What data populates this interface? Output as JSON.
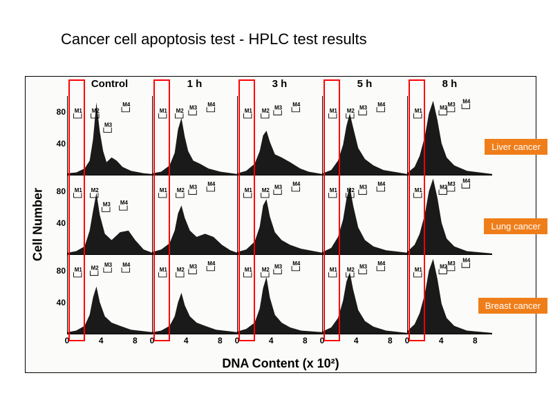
{
  "title": "Cancer cell apoptosis test - HPLC test results",
  "axes": {
    "y_label": "Cell Number",
    "x_label": "DNA Content (x 10²)",
    "y_ticks": [
      40,
      80
    ],
    "x_ticks": [
      0,
      4,
      8
    ],
    "x_domain": [
      0,
      10
    ],
    "y_domain": [
      0,
      100
    ]
  },
  "columns": [
    "Control",
    "1 h",
    "3 h",
    "5 h",
    "8 h"
  ],
  "rows": [
    {
      "label": "Liver cancer",
      "badge_bg": "#ef7e1a"
    },
    {
      "label": "Lung cancer",
      "badge_bg": "#ef7e1a"
    },
    {
      "label": "Breast cancer",
      "badge_bg": "#ef7e1a"
    }
  ],
  "colors": {
    "histogram_fill": "#1a1a1a",
    "grid_line": "#000000",
    "red_box": "#ff0000",
    "background": "#ffffff",
    "figure_bg": "#fbfbf9"
  },
  "gate_labels": [
    "M1",
    "M2",
    "M3",
    "M4"
  ],
  "red_box_x_range": [
    0.3,
    2.3
  ],
  "panels": [
    [
      {
        "profile": [
          [
            0,
            2
          ],
          [
            1,
            3
          ],
          [
            2,
            8
          ],
          [
            2.6,
            18
          ],
          [
            3.0,
            45
          ],
          [
            3.4,
            92
          ],
          [
            3.8,
            55
          ],
          [
            4.2,
            30
          ],
          [
            4.6,
            16
          ],
          [
            5.2,
            22
          ],
          [
            5.8,
            18
          ],
          [
            6.5,
            10
          ],
          [
            7.5,
            5
          ],
          [
            9,
            2
          ],
          [
            10,
            1
          ]
        ],
        "gates": [
          [
            0.4,
            78
          ],
          [
            2.6,
            78
          ],
          [
            4.2,
            60
          ],
          [
            6.5,
            86
          ]
        ]
      },
      {
        "profile": [
          [
            0,
            2
          ],
          [
            1,
            4
          ],
          [
            2,
            12
          ],
          [
            2.6,
            28
          ],
          [
            3.0,
            58
          ],
          [
            3.4,
            72
          ],
          [
            3.8,
            48
          ],
          [
            4.2,
            30
          ],
          [
            4.8,
            18
          ],
          [
            5.6,
            14
          ],
          [
            6.6,
            8
          ],
          [
            8,
            4
          ],
          [
            10,
            1
          ]
        ],
        "gates": [
          [
            0.4,
            78
          ],
          [
            2.5,
            78
          ],
          [
            4.2,
            82
          ],
          [
            6.5,
            86
          ]
        ]
      },
      {
        "profile": [
          [
            0,
            2
          ],
          [
            1,
            5
          ],
          [
            2,
            14
          ],
          [
            2.6,
            30
          ],
          [
            3.0,
            50
          ],
          [
            3.4,
            56
          ],
          [
            3.8,
            42
          ],
          [
            4.4,
            26
          ],
          [
            5.2,
            22
          ],
          [
            6.2,
            16
          ],
          [
            7.4,
            8
          ],
          [
            8.4,
            4
          ],
          [
            10,
            1
          ]
        ],
        "gates": [
          [
            0.4,
            78
          ],
          [
            2.6,
            78
          ],
          [
            4.2,
            82
          ],
          [
            6.5,
            86
          ]
        ]
      },
      {
        "profile": [
          [
            0,
            2
          ],
          [
            1,
            6
          ],
          [
            1.8,
            18
          ],
          [
            2.4,
            38
          ],
          [
            2.8,
            62
          ],
          [
            3.2,
            78
          ],
          [
            3.6,
            60
          ],
          [
            4.2,
            34
          ],
          [
            5.0,
            20
          ],
          [
            6.0,
            12
          ],
          [
            7.2,
            6
          ],
          [
            10,
            1
          ]
        ],
        "gates": [
          [
            0.4,
            78
          ],
          [
            2.6,
            78
          ],
          [
            4.2,
            82
          ],
          [
            6.5,
            86
          ]
        ]
      },
      {
        "profile": [
          [
            0,
            3
          ],
          [
            0.8,
            10
          ],
          [
            1.4,
            24
          ],
          [
            2.0,
            48
          ],
          [
            2.5,
            78
          ],
          [
            3.0,
            94
          ],
          [
            3.5,
            70
          ],
          [
            4.0,
            40
          ],
          [
            4.6,
            22
          ],
          [
            5.5,
            12
          ],
          [
            7,
            5
          ],
          [
            10,
            1
          ]
        ],
        "gates": [
          [
            0.4,
            78
          ],
          [
            3.6,
            82
          ],
          [
            4.6,
            86
          ],
          [
            6.5,
            90
          ]
        ]
      }
    ],
    [
      {
        "profile": [
          [
            0,
            2
          ],
          [
            1,
            4
          ],
          [
            2,
            10
          ],
          [
            2.6,
            30
          ],
          [
            3.0,
            55
          ],
          [
            3.4,
            78
          ],
          [
            3.8,
            50
          ],
          [
            4.4,
            26
          ],
          [
            5.2,
            18
          ],
          [
            6.2,
            28
          ],
          [
            7.2,
            30
          ],
          [
            8.0,
            18
          ],
          [
            9,
            6
          ],
          [
            10,
            2
          ]
        ],
        "gates": [
          [
            0.4,
            78
          ],
          [
            2.5,
            78
          ],
          [
            4.0,
            60
          ],
          [
            6.2,
            62
          ]
        ]
      },
      {
        "profile": [
          [
            0,
            3
          ],
          [
            1,
            6
          ],
          [
            2,
            14
          ],
          [
            2.6,
            30
          ],
          [
            3.0,
            52
          ],
          [
            3.4,
            62
          ],
          [
            3.8,
            46
          ],
          [
            4.4,
            30
          ],
          [
            5.2,
            22
          ],
          [
            6.2,
            26
          ],
          [
            7.2,
            22
          ],
          [
            8.2,
            12
          ],
          [
            9.2,
            5
          ],
          [
            10,
            2
          ]
        ],
        "gates": [
          [
            0.4,
            78
          ],
          [
            2.6,
            78
          ],
          [
            4.2,
            82
          ],
          [
            6.5,
            86
          ]
        ]
      },
      {
        "profile": [
          [
            0,
            3
          ],
          [
            1,
            6
          ],
          [
            2,
            16
          ],
          [
            2.6,
            35
          ],
          [
            3.0,
            62
          ],
          [
            3.4,
            70
          ],
          [
            3.8,
            48
          ],
          [
            4.4,
            28
          ],
          [
            5.2,
            18
          ],
          [
            6.2,
            12
          ],
          [
            7.5,
            7
          ],
          [
            10,
            2
          ]
        ],
        "gates": [
          [
            0.4,
            78
          ],
          [
            2.6,
            78
          ],
          [
            4.2,
            82
          ],
          [
            6.5,
            86
          ]
        ]
      },
      {
        "profile": [
          [
            0,
            3
          ],
          [
            1,
            8
          ],
          [
            1.8,
            22
          ],
          [
            2.4,
            44
          ],
          [
            2.8,
            70
          ],
          [
            3.2,
            86
          ],
          [
            3.6,
            62
          ],
          [
            4.2,
            34
          ],
          [
            5.0,
            18
          ],
          [
            6.0,
            10
          ],
          [
            7.5,
            5
          ],
          [
            10,
            2
          ]
        ],
        "gates": [
          [
            0.4,
            78
          ],
          [
            2.6,
            78
          ],
          [
            4.2,
            82
          ],
          [
            6.5,
            86
          ]
        ]
      },
      {
        "profile": [
          [
            0,
            4
          ],
          [
            0.8,
            12
          ],
          [
            1.4,
            26
          ],
          [
            2.0,
            50
          ],
          [
            2.5,
            80
          ],
          [
            3.0,
            96
          ],
          [
            3.5,
            72
          ],
          [
            4.0,
            40
          ],
          [
            4.6,
            20
          ],
          [
            5.5,
            10
          ],
          [
            7,
            4
          ],
          [
            10,
            1
          ]
        ],
        "gates": [
          [
            0.4,
            78
          ],
          [
            3.6,
            82
          ],
          [
            4.6,
            86
          ],
          [
            6.5,
            90
          ]
        ]
      }
    ],
    [
      {
        "profile": [
          [
            0,
            2
          ],
          [
            1,
            4
          ],
          [
            2,
            10
          ],
          [
            2.6,
            24
          ],
          [
            3.0,
            46
          ],
          [
            3.4,
            60
          ],
          [
            3.8,
            40
          ],
          [
            4.4,
            22
          ],
          [
            5.2,
            14
          ],
          [
            6.2,
            10
          ],
          [
            7.5,
            5
          ],
          [
            10,
            2
          ]
        ],
        "gates": [
          [
            0.4,
            78
          ],
          [
            2.5,
            80
          ],
          [
            4.2,
            84
          ],
          [
            6.5,
            84
          ]
        ]
      },
      {
        "profile": [
          [
            0,
            2
          ],
          [
            1,
            4
          ],
          [
            2,
            10
          ],
          [
            2.6,
            22
          ],
          [
            3.0,
            40
          ],
          [
            3.4,
            52
          ],
          [
            3.8,
            36
          ],
          [
            4.4,
            22
          ],
          [
            5.2,
            14
          ],
          [
            6.2,
            10
          ],
          [
            7.5,
            5
          ],
          [
            10,
            2
          ]
        ],
        "gates": [
          [
            0.4,
            78
          ],
          [
            2.6,
            78
          ],
          [
            4.2,
            82
          ],
          [
            6.5,
            86
          ]
        ]
      },
      {
        "profile": [
          [
            0,
            3
          ],
          [
            1,
            6
          ],
          [
            2,
            14
          ],
          [
            2.6,
            32
          ],
          [
            3.0,
            58
          ],
          [
            3.4,
            72
          ],
          [
            3.8,
            46
          ],
          [
            4.4,
            24
          ],
          [
            5.2,
            14
          ],
          [
            6.2,
            8
          ],
          [
            7.5,
            4
          ],
          [
            10,
            2
          ]
        ],
        "gates": [
          [
            0.4,
            78
          ],
          [
            2.6,
            78
          ],
          [
            4.2,
            82
          ],
          [
            6.5,
            86
          ]
        ]
      },
      {
        "profile": [
          [
            0,
            3
          ],
          [
            1,
            8
          ],
          [
            1.8,
            20
          ],
          [
            2.4,
            42
          ],
          [
            2.8,
            66
          ],
          [
            3.2,
            78
          ],
          [
            3.6,
            56
          ],
          [
            4.2,
            30
          ],
          [
            5.0,
            16
          ],
          [
            6.0,
            9
          ],
          [
            7.5,
            4
          ],
          [
            10,
            1
          ]
        ],
        "gates": [
          [
            0.4,
            78
          ],
          [
            2.6,
            78
          ],
          [
            4.2,
            82
          ],
          [
            6.5,
            86
          ]
        ]
      },
      {
        "profile": [
          [
            0,
            4
          ],
          [
            0.8,
            12
          ],
          [
            1.4,
            26
          ],
          [
            2.0,
            50
          ],
          [
            2.5,
            80
          ],
          [
            3.0,
            95
          ],
          [
            3.5,
            70
          ],
          [
            4.0,
            38
          ],
          [
            4.6,
            20
          ],
          [
            5.5,
            10
          ],
          [
            7,
            4
          ],
          [
            10,
            1
          ]
        ],
        "gates": [
          [
            0.4,
            78
          ],
          [
            3.6,
            82
          ],
          [
            4.6,
            86
          ],
          [
            6.5,
            90
          ]
        ]
      }
    ]
  ]
}
